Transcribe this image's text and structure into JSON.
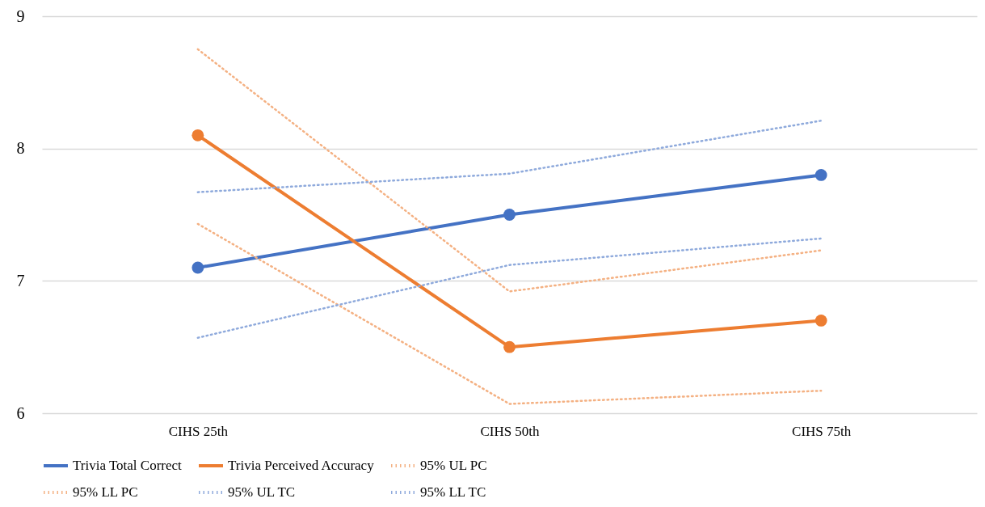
{
  "chart_data": {
    "type": "line",
    "categories": [
      "CIHS 25th",
      "CIHS 50th",
      "CIHS 75th"
    ],
    "ylim": [
      6,
      9
    ],
    "yticks": [
      6,
      7,
      8,
      9
    ],
    "grid": "y",
    "legend": "bottom",
    "series": [
      {
        "name": "Trivia Total Correct",
        "color": "#4472c4",
        "values": [
          7.1,
          7.5,
          7.8
        ],
        "marker": "circle",
        "line_style": "solid"
      },
      {
        "name": "Trivia Perceived Accuracy",
        "color": "#ed7d31",
        "values": [
          8.1,
          6.5,
          6.7
        ],
        "marker": "circle",
        "line_style": "solid"
      },
      {
        "name": "95% UL PC",
        "color": "#f4b183",
        "values": [
          8.75,
          6.92,
          7.23
        ],
        "marker": "none",
        "line_style": "dotted"
      },
      {
        "name": "95% LL PC",
        "color": "#f4b183",
        "values": [
          7.43,
          6.07,
          6.17
        ],
        "marker": "none",
        "line_style": "dotted"
      },
      {
        "name": "95% UL TC",
        "color": "#8faadc",
        "values": [
          7.67,
          7.81,
          8.21
        ],
        "marker": "none",
        "line_style": "dotted"
      },
      {
        "name": "95% LL TC",
        "color": "#8faadc",
        "values": [
          6.57,
          7.12,
          7.32
        ],
        "marker": "none",
        "line_style": "dotted"
      }
    ]
  }
}
